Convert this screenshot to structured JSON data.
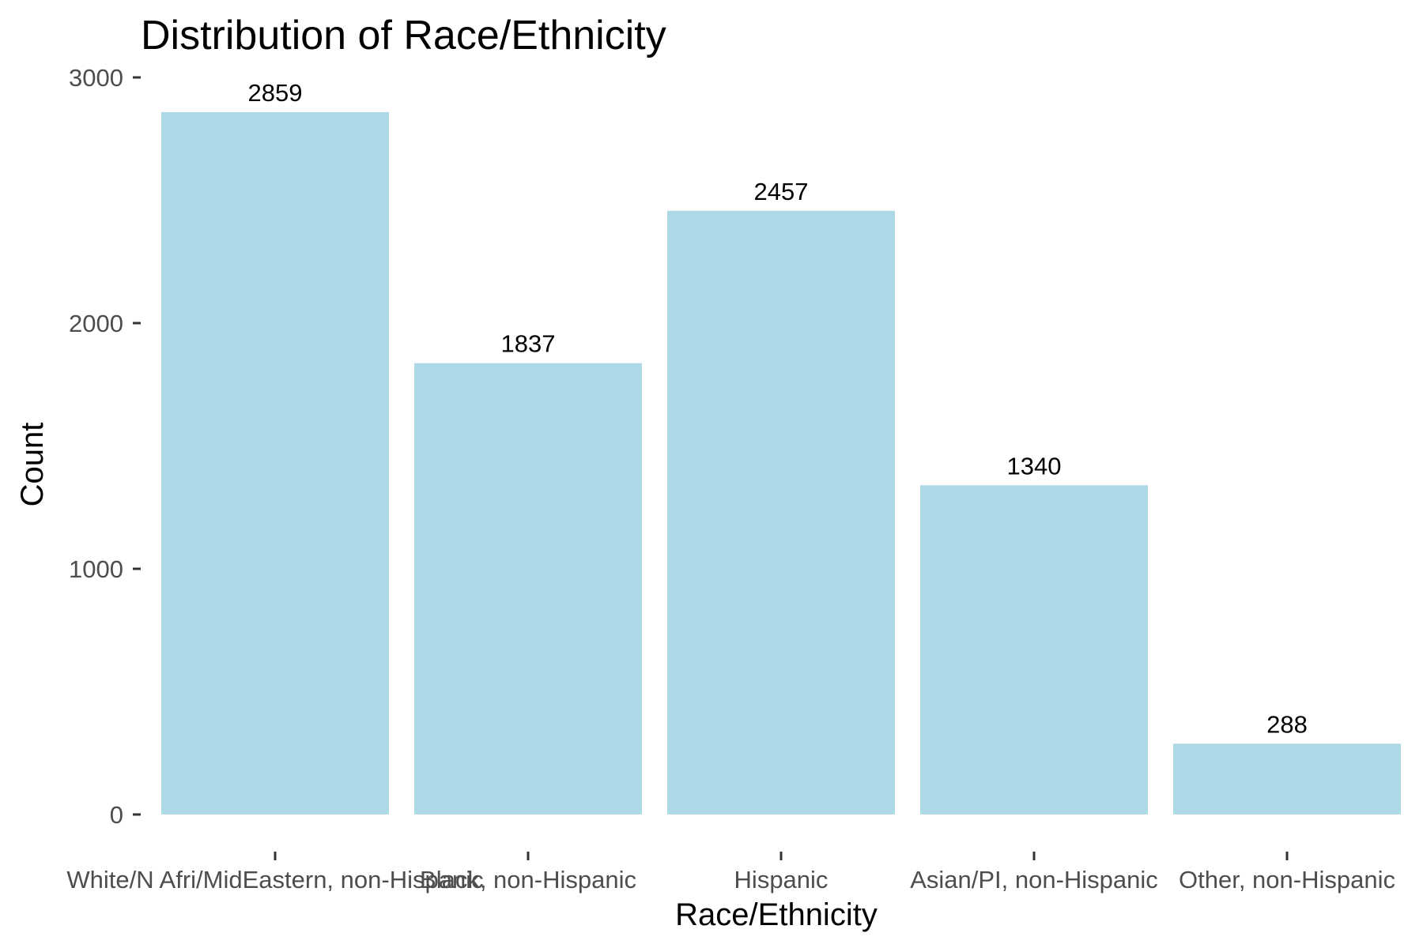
{
  "chart_data": {
    "type": "bar",
    "title": "Distribution of Race/Ethnicity",
    "xlabel": "Race/Ethnicity",
    "ylabel": "Count",
    "categories": [
      "White/N Afri/MidEastern, non-Hispanic",
      "Black, non-Hispanic",
      "Hispanic",
      "Asian/PI, non-Hispanic",
      "Other, non-Hispanic"
    ],
    "values": [
      2859,
      1837,
      2457,
      1340,
      288
    ],
    "data_labels": [
      "2859",
      "1837",
      "2457",
      "1340",
      "288"
    ],
    "ylim": [
      0,
      3000
    ],
    "yticks": [
      0,
      1000,
      2000,
      3000
    ],
    "ytick_labels": [
      "0",
      "1000",
      "2000",
      "3000"
    ],
    "grid": false,
    "legend": "none",
    "bar_color": "#add8e6"
  }
}
